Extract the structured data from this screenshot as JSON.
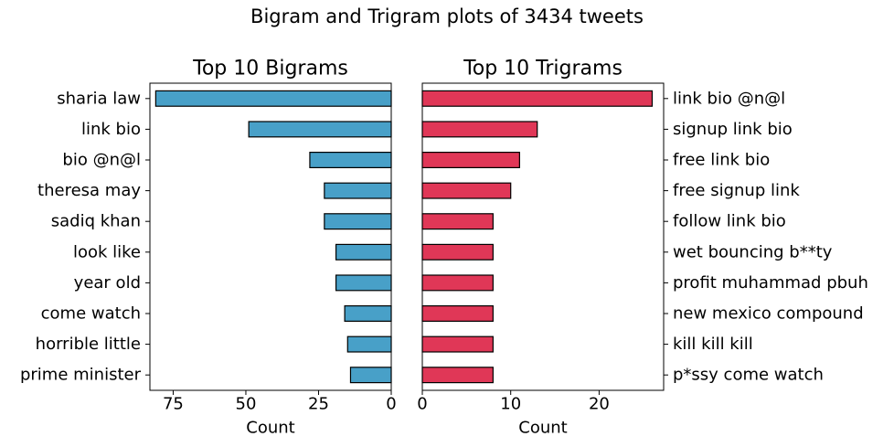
{
  "title": "Bigram and Trigram plots of 3434 tweets",
  "colors": {
    "bigram_bar": "#48a0c8",
    "trigram_bar": "#e03757",
    "edge": "#000000"
  },
  "chart_data": [
    {
      "type": "bar",
      "orientation": "horizontal",
      "inverted_x": true,
      "title": "Top 10 Bigrams",
      "xlabel": "Count",
      "ylabel": "",
      "xlim": [
        83,
        0
      ],
      "xticks": [
        75,
        50,
        25,
        0
      ],
      "categories": [
        "sharia law",
        "link bio",
        "bio @n@l",
        "theresa may",
        "sadiq khan",
        "look like",
        "year old",
        "come watch",
        "horrible little",
        "prime minister"
      ],
      "values": [
        81,
        49,
        28,
        23,
        23,
        19,
        19,
        16,
        15,
        14
      ],
      "grid": false
    },
    {
      "type": "bar",
      "orientation": "horizontal",
      "title": "Top 10 Trigrams",
      "xlabel": "Count",
      "ylabel": "",
      "xlim": [
        0,
        27.3
      ],
      "xticks": [
        0,
        10,
        20
      ],
      "y_axis_side": "right",
      "categories": [
        "link bio @n@l",
        "signup link bio",
        "free link bio",
        "free signup link",
        "follow link bio",
        "wet bouncing b**ty",
        "profit muhammad pbuh",
        "new mexico compound",
        "kill kill kill",
        "p*ssy come watch"
      ],
      "values": [
        26,
        13,
        11,
        10,
        8,
        8,
        8,
        8,
        8,
        8
      ],
      "grid": false
    }
  ]
}
